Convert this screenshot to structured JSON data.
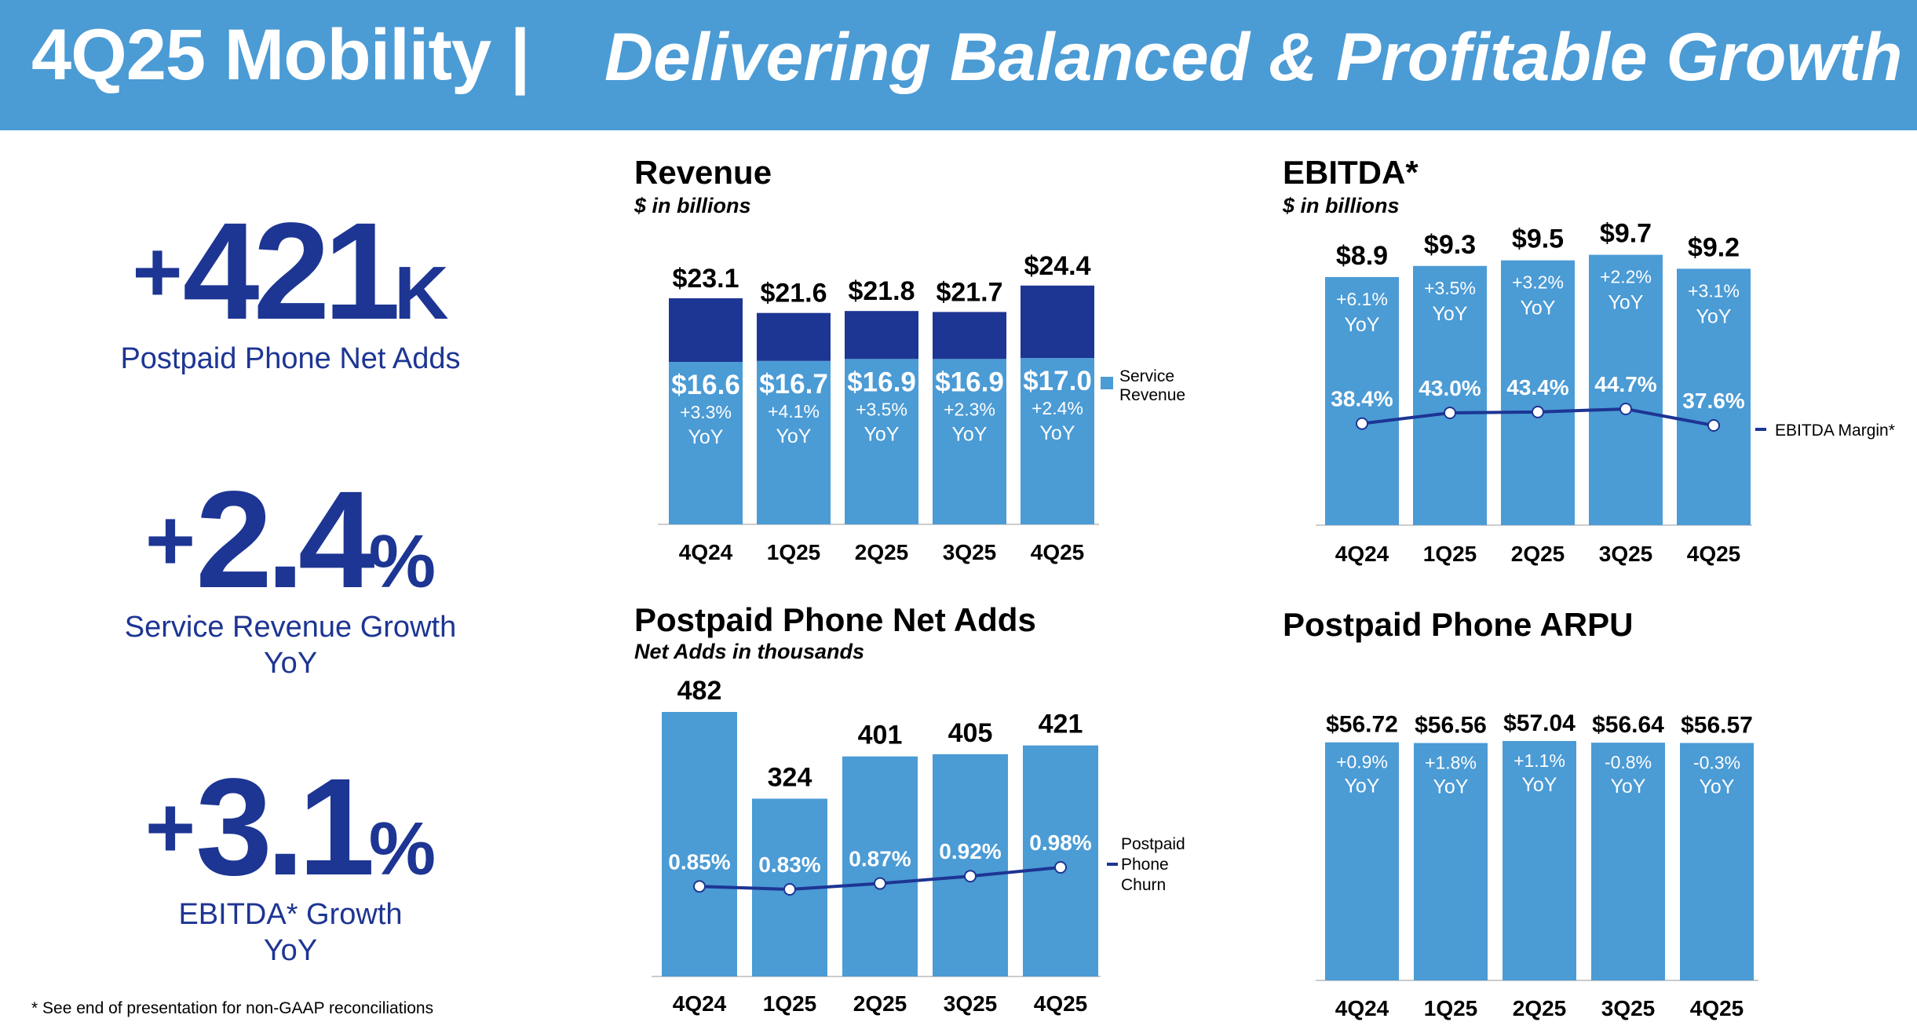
{
  "header": {
    "title": "4Q25 Mobility |",
    "subtitle": "Delivering Balanced & Profitable Growth"
  },
  "kpis": [
    {
      "sign": "+",
      "value": "421",
      "unit": "K",
      "label_lines": [
        "Postpaid Phone Net Adds"
      ]
    },
    {
      "sign": "+",
      "value": "2.4",
      "unit": "%",
      "label_lines": [
        "Service Revenue Growth",
        "YoY"
      ]
    },
    {
      "sign": "+",
      "value": "3.1",
      "unit": "%",
      "label_lines": [
        "EBITDA* Growth",
        "YoY"
      ]
    }
  ],
  "footnote": "* See end of presentation for non-GAAP reconciliations",
  "colors": {
    "banner": "#4b9bd5",
    "bar_light": "#4b9bd5",
    "bar_dark": "#1d3593",
    "kpi_text": "#1d3593",
    "line": "#1d3593"
  },
  "chart_data": [
    {
      "id": "revenue",
      "type": "bar",
      "title": "Revenue",
      "subtitle": "$ in billions",
      "categories": [
        "4Q24",
        "1Q25",
        "2Q25",
        "3Q25",
        "4Q25"
      ],
      "series": [
        {
          "name": "Service Revenue",
          "values": [
            16.6,
            16.7,
            16.9,
            16.9,
            17.0
          ],
          "labels": [
            "$16.6",
            "$16.7",
            "$16.9",
            "$16.9",
            "$17.0"
          ],
          "yoy": [
            "+3.3%",
            "+4.1%",
            "+3.5%",
            "+2.3%",
            "+2.4%"
          ]
        },
        {
          "values": [
            6.5,
            4.9,
            4.9,
            4.8,
            7.4
          ]
        }
      ],
      "totals": [
        23.1,
        21.6,
        21.8,
        21.7,
        24.4
      ],
      "total_labels": [
        "$23.1",
        "$21.6",
        "$21.8",
        "$21.7",
        "$24.4"
      ],
      "yoy_suffix": "YoY",
      "stacked": true,
      "legend": "right",
      "ylim": [
        0,
        26
      ]
    },
    {
      "id": "ebitda",
      "type": "bar",
      "title": "EBITDA*",
      "subtitle": "$ in billions",
      "categories": [
        "4Q24",
        "1Q25",
        "2Q25",
        "3Q25",
        "4Q25"
      ],
      "values": [
        8.9,
        9.3,
        9.5,
        9.7,
        9.2
      ],
      "value_labels": [
        "$8.9",
        "$9.3",
        "$9.5",
        "$9.7",
        "$9.2"
      ],
      "yoy": [
        "+6.1%",
        "+3.5%",
        "+3.2%",
        "+2.2%",
        "+3.1%"
      ],
      "yoy_suffix": "YoY",
      "ylim": [
        0,
        10.5
      ],
      "line": {
        "name": "EBITDA Margin*",
        "values": [
          38.4,
          43.0,
          43.4,
          44.7,
          37.6
        ],
        "labels": [
          "38.4%",
          "43.0%",
          "43.4%",
          "44.7%",
          "37.6%"
        ]
      },
      "legend": "right"
    },
    {
      "id": "netadds",
      "type": "bar",
      "title": "Postpaid Phone Net Adds",
      "subtitle": "Net Adds in thousands",
      "categories": [
        "4Q24",
        "1Q25",
        "2Q25",
        "3Q25",
        "4Q25"
      ],
      "values": [
        482,
        324,
        401,
        405,
        421
      ],
      "value_labels": [
        "482",
        "324",
        "401",
        "405",
        "421"
      ],
      "ylim": [
        0,
        500
      ],
      "line": {
        "name": "Postpaid Phone Churn",
        "name_lines": [
          "Postpaid",
          "Phone",
          "Churn"
        ],
        "values": [
          0.85,
          0.83,
          0.87,
          0.92,
          0.98
        ],
        "labels": [
          "0.85%",
          "0.83%",
          "0.87%",
          "0.92%",
          "0.98%"
        ]
      },
      "legend": "right"
    },
    {
      "id": "arpu",
      "type": "bar",
      "title": "Postpaid Phone ARPU",
      "subtitle": "",
      "categories": [
        "4Q24",
        "1Q25",
        "2Q25",
        "3Q25",
        "4Q25"
      ],
      "values": [
        56.72,
        56.56,
        57.04,
        56.64,
        56.57
      ],
      "value_labels": [
        "$56.72",
        "$56.56",
        "$57.04",
        "$56.64",
        "$56.57"
      ],
      "yoy": [
        "+0.9%",
        "+1.8%",
        "+1.1%",
        "-0.8%",
        "-0.3%"
      ],
      "yoy_suffix": "YoY",
      "ylim": [
        0,
        60
      ]
    }
  ]
}
